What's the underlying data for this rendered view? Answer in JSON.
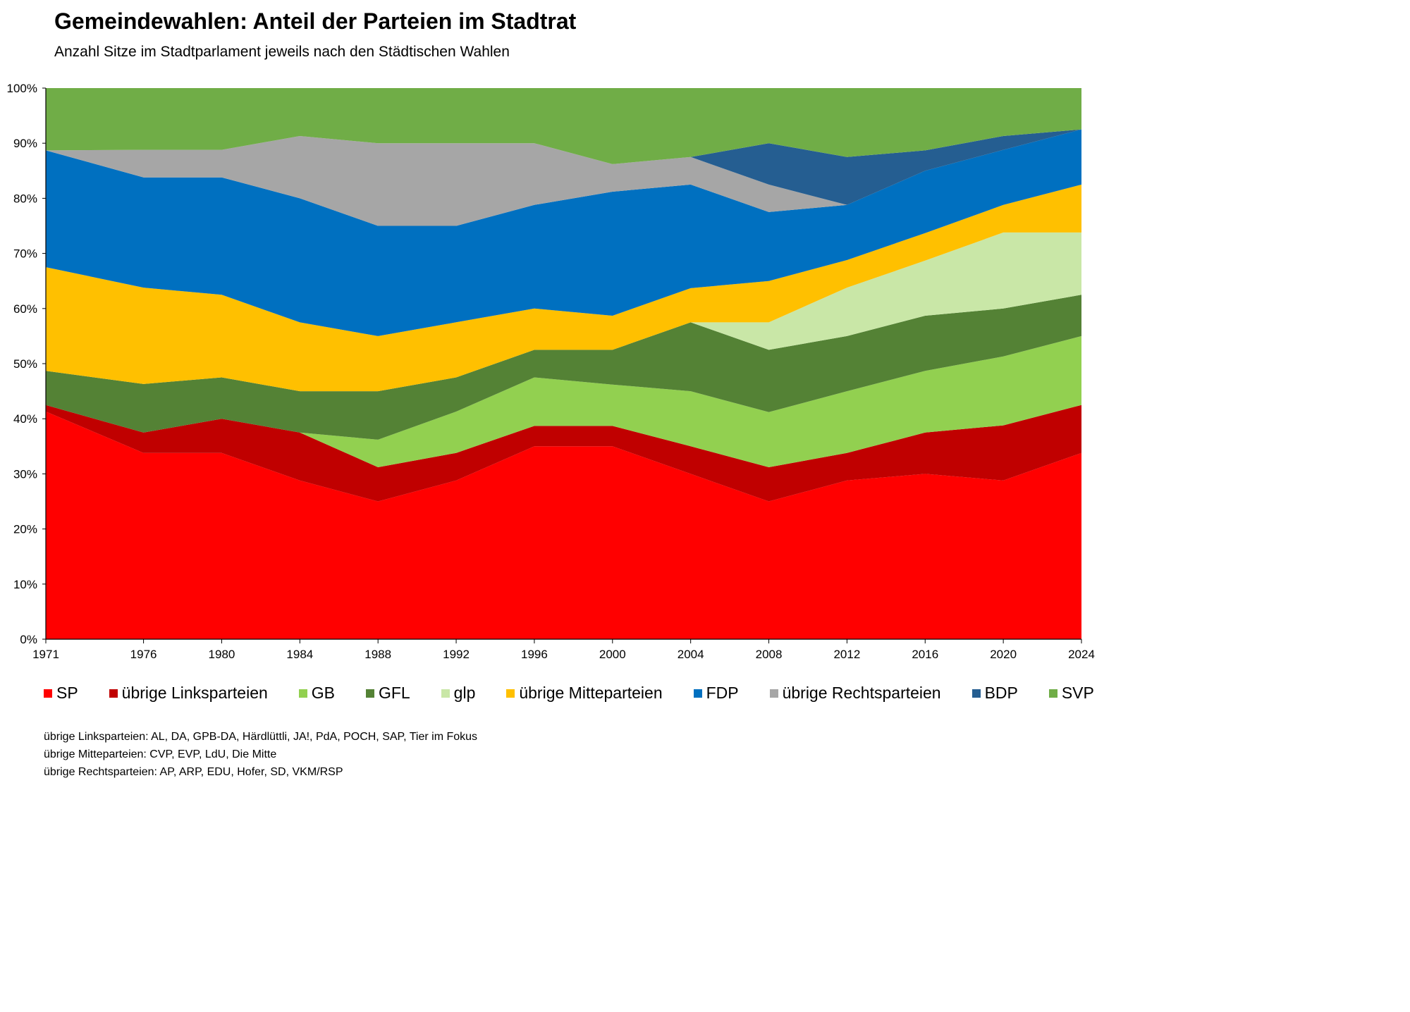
{
  "title": "Gemeindewahlen: Anteil der Parteien im Stadtrat",
  "subtitle": "Anzahl Sitze im Stadtparlament jeweils nach den Städtischen Wahlen",
  "notes": [
    "übrige Linksparteien: AL, DA, GPB-DA, Härdlüttli, JA!, PdA, POCH, SAP, Tier im Fokus",
    "übrige Mitteparteien: CVP, EVP, LdU, Die Mitte",
    "übrige Rechtsparteien: AP, ARP, EDU, Hofer, SD, VKM/RSP"
  ],
  "chart_data": {
    "type": "area",
    "stacked": "percent",
    "x": [
      1971,
      1976,
      1980,
      1984,
      1988,
      1992,
      1996,
      2000,
      2004,
      2008,
      2012,
      2016,
      2020,
      2024
    ],
    "ylim": [
      0,
      100
    ],
    "yticks": [
      "0%",
      "10%",
      "20%",
      "30%",
      "40%",
      "50%",
      "60%",
      "70%",
      "80%",
      "90%",
      "100%"
    ],
    "grid": false,
    "legend_position": "bottom",
    "series": [
      {
        "name": "SP",
        "color": "#ff0000",
        "values": [
          41.3,
          33.8,
          33.8,
          28.8,
          25.0,
          28.8,
          35.0,
          35.0,
          30.0,
          25.0,
          28.8,
          30.0,
          28.8,
          33.8
        ]
      },
      {
        "name": "übrige Linksparteien",
        "color": "#c00000",
        "values": [
          1.2,
          3.7,
          6.2,
          8.7,
          6.2,
          5.0,
          3.7,
          3.7,
          5.0,
          6.2,
          5.0,
          7.5,
          10.0,
          8.7
        ]
      },
      {
        "name": "GB",
        "color": "#92d050",
        "values": [
          0,
          0,
          0,
          0,
          5.0,
          7.5,
          8.8,
          7.5,
          10.0,
          10.0,
          11.2,
          11.2,
          12.5,
          12.5
        ]
      },
      {
        "name": "GFL",
        "color": "#548235",
        "values": [
          6.2,
          8.8,
          7.5,
          7.5,
          8.8,
          6.2,
          5.0,
          6.3,
          12.5,
          11.3,
          10.0,
          10.0,
          8.7,
          7.5
        ]
      },
      {
        "name": "glp",
        "color": "#c9e7a7",
        "values": [
          0,
          0,
          0,
          0,
          0,
          0,
          0,
          0,
          0,
          5.0,
          8.8,
          10.0,
          13.8,
          11.3
        ]
      },
      {
        "name": "übrige Mitteparteien",
        "color": "#ffc000",
        "values": [
          18.8,
          17.5,
          15.0,
          12.5,
          10.0,
          10.0,
          7.5,
          6.2,
          6.2,
          7.5,
          5.0,
          5.0,
          5.0,
          8.7
        ]
      },
      {
        "name": "FDP",
        "color": "#0070c0",
        "values": [
          21.2,
          20.0,
          21.3,
          22.5,
          20.0,
          17.5,
          18.8,
          22.5,
          18.8,
          12.5,
          10.0,
          11.3,
          10.0,
          10.0
        ]
      },
      {
        "name": "übrige Rechtsparteien",
        "color": "#a6a6a6",
        "values": [
          0,
          5.0,
          5.0,
          11.3,
          15.0,
          15.0,
          11.2,
          5.0,
          5.0,
          5.0,
          0,
          0,
          0,
          0
        ]
      },
      {
        "name": "BDP",
        "color": "#255e91",
        "values": [
          0,
          0,
          0,
          0,
          0,
          0,
          0,
          0,
          0,
          7.5,
          8.7,
          3.7,
          2.5,
          0
        ]
      },
      {
        "name": "SVP",
        "color": "#70ad47",
        "values": [
          11.3,
          11.2,
          11.2,
          8.7,
          10.0,
          10.0,
          10.0,
          13.8,
          12.5,
          10.0,
          12.5,
          11.3,
          8.7,
          7.5
        ]
      }
    ]
  }
}
